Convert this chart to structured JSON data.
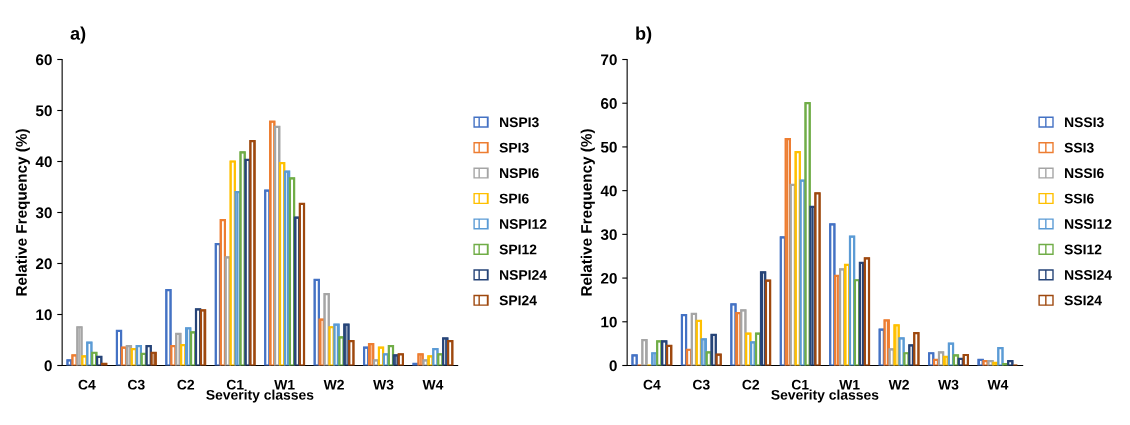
{
  "chart_data": [
    {
      "type": "bar",
      "annotations": [
        "a)"
      ],
      "xlabel": "Severity classes",
      "ylabel": "Relative Frequency (%)",
      "categories": [
        "C4",
        "C3",
        "C2",
        "C1",
        "W1",
        "W2",
        "W3",
        "W4"
      ],
      "ylim": [
        0,
        60
      ],
      "yticks": [
        0,
        10,
        20,
        30,
        40,
        50,
        60
      ],
      "legend": "right",
      "grid": false,
      "series": [
        {
          "name": "NSPI3",
          "color": "#4472c4",
          "values": [
            1,
            6.8,
            14.8,
            23.8,
            34.3,
            16.8,
            3.5,
            0.3
          ]
        },
        {
          "name": "SPI3",
          "color": "#ed7d31",
          "values": [
            2,
            3.5,
            3.8,
            28.5,
            47.8,
            9,
            4.2,
            2.2
          ]
        },
        {
          "name": "NSPI6",
          "color": "#a5a5a5",
          "values": [
            7.5,
            3.8,
            6.2,
            21.2,
            46.8,
            14,
            1,
            1
          ]
        },
        {
          "name": "SPI6",
          "color": "#ffc000",
          "values": [
            1.8,
            3.2,
            4,
            40,
            39.7,
            7.5,
            3.5,
            1.8
          ]
        },
        {
          "name": "NSPI12",
          "color": "#5b9bd5",
          "values": [
            4.5,
            3.8,
            7.3,
            34,
            38,
            8,
            2.2,
            3.2
          ]
        },
        {
          "name": "SPI12",
          "color": "#70ad47",
          "values": [
            2.5,
            2.3,
            6.5,
            41.8,
            36.7,
            5.5,
            3.8,
            2.2
          ]
        },
        {
          "name": "NSPI24",
          "color": "#264478",
          "values": [
            1.7,
            3.8,
            11,
            40.3,
            29,
            8,
            2,
            5.3
          ]
        },
        {
          "name": "SPI24",
          "color": "#9e480e",
          "values": [
            0.3,
            2.5,
            10.8,
            44,
            31.7,
            4.8,
            2.2,
            4.8
          ]
        }
      ]
    },
    {
      "type": "bar",
      "annotations": [
        "b)"
      ],
      "xlabel": "Severity classes",
      "ylabel": "Relative Frequency (%)",
      "categories": [
        "C4",
        "C3",
        "C2",
        "C1",
        "W1",
        "W2",
        "W3",
        "W4"
      ],
      "ylim": [
        0,
        70
      ],
      "yticks": [
        0,
        10,
        20,
        30,
        40,
        50,
        60,
        70
      ],
      "legend": "right",
      "grid": false,
      "series": [
        {
          "name": "NSSI3",
          "color": "#4472c4",
          "values": [
            2.3,
            11.5,
            14,
            29.3,
            32.3,
            8.2,
            2.8,
            1.3
          ]
        },
        {
          "name": "SSI3",
          "color": "#ed7d31",
          "values": [
            0,
            3.6,
            12,
            51.8,
            20.5,
            10.3,
            1.3,
            1
          ]
        },
        {
          "name": "NSSI6",
          "color": "#a5a5a5",
          "values": [
            5.8,
            11.8,
            12.6,
            41.3,
            22,
            3.7,
            3,
            1
          ]
        },
        {
          "name": "SSI6",
          "color": "#ffc000",
          "values": [
            0,
            10.2,
            7.3,
            48.8,
            23,
            9.2,
            2,
            0.6
          ]
        },
        {
          "name": "NSSI12",
          "color": "#5b9bd5",
          "values": [
            2.8,
            6,
            5.3,
            42.3,
            29.5,
            6.2,
            5,
            4
          ]
        },
        {
          "name": "SSI12",
          "color": "#70ad47",
          "values": [
            5.5,
            3,
            7.3,
            60,
            19.5,
            2.8,
            2.3,
            0.3
          ]
        },
        {
          "name": "NSSI24",
          "color": "#264478",
          "values": [
            5.5,
            7,
            21.3,
            36.3,
            23.5,
            4.6,
            1.5,
            1
          ]
        },
        {
          "name": "SSI24",
          "color": "#9e480e",
          "values": [
            4.5,
            2.5,
            19.4,
            39.4,
            24.5,
            7.4,
            2.4,
            0
          ]
        }
      ]
    }
  ]
}
